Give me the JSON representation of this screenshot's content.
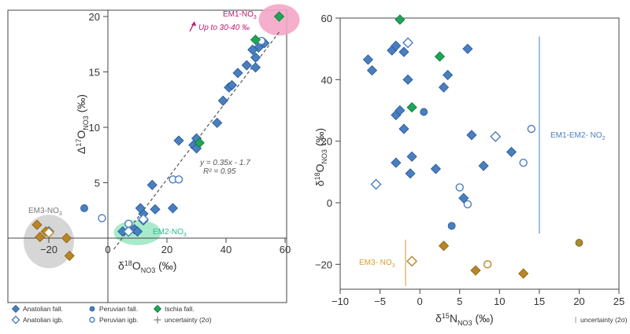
{
  "colors": {
    "anatolian": "#4a7fbf",
    "ischia": "#22a35a",
    "em3_marker": "#b8862a",
    "em3_fill": "#a88a38",
    "pink": "#f4a6c6",
    "pink_text": "#c0186e",
    "green_blob": "#9fe8c7",
    "green_text": "#2bb88a",
    "gray_blob": "#d2d2d2",
    "em_line": "#6aa0d8",
    "em3_line": "#d8b060"
  },
  "legend": {
    "items": [
      {
        "label": "Anatolian fall.",
        "marker": "filled-diamond",
        "color": "#4a7fbf"
      },
      {
        "label": "Peruvian fall.",
        "marker": "filled-circle",
        "color": "#4a7fbf"
      },
      {
        "label": "Ischia fall.",
        "marker": "filled-diamond",
        "color": "#22a35a"
      },
      {
        "label": "Anatolian igb.",
        "marker": "open-diamond",
        "color": "#4a7fbf"
      },
      {
        "label": "Peruvian igb.",
        "marker": "open-circle",
        "color": "#4a7fbf"
      },
      {
        "label": "uncertainty (2σ)",
        "marker": "cross",
        "color": "#666666"
      }
    ]
  },
  "chart_data": [
    {
      "type": "scatter",
      "xlabel": "δ18ONO3 (‰)",
      "ylabel": "Δ17ONO3 (‰)",
      "xlim": [
        -35,
        60
      ],
      "ylim": [
        -3,
        20
      ],
      "xticks": [
        -20,
        0,
        20,
        40,
        60
      ],
      "yticks": [
        5,
        10,
        15,
        20
      ],
      "regression": {
        "equation": "y = 0.35x - 1.7",
        "r2": "R² = 0.95",
        "x0": 2,
        "x1": 58
      },
      "annotations": {
        "em1": "EM1-NO3",
        "em1_sub": "3",
        "em1_label": "EM1-NO",
        "up_to": "Up to 30-40 ‰",
        "em2_label": "EM2-NO",
        "em2_sub": "3",
        "em3_label": "EM3-NO",
        "em3_sub": "3"
      },
      "regions": [
        {
          "name": "EM1",
          "cx": 58,
          "cy": 19.7,
          "color": "pink"
        },
        {
          "name": "EM2",
          "cx": 10,
          "cy": 0.5,
          "color": "green"
        },
        {
          "name": "EM3",
          "cx": -20,
          "cy": -0.3,
          "color": "gray"
        }
      ],
      "series": [
        {
          "kind": "anatolian-fall",
          "marker": "filled-diamond",
          "color": "#4a7fbf",
          "points": [
            [
              12,
              2.2
            ],
            [
              12,
              1.6
            ],
            [
              16,
              2.6
            ],
            [
              15,
              4.8
            ],
            [
              22,
              2.7
            ],
            [
              24,
              8.8
            ],
            [
              29,
              8.4
            ],
            [
              30,
              8.1
            ],
            [
              30,
              9.0
            ],
            [
              37,
              10.4
            ],
            [
              39,
              12.4
            ],
            [
              41,
              13.6
            ],
            [
              42,
              13.8
            ],
            [
              44,
              14.9
            ],
            [
              47,
              15.6
            ],
            [
              50,
              15.4
            ],
            [
              50,
              16.3
            ],
            [
              51,
              17.2
            ],
            [
              53,
              17.6
            ],
            [
              49,
              17.0
            ],
            [
              5,
              0.6
            ],
            [
              9,
              0.8
            ],
            [
              11,
              2.7
            ],
            [
              10,
              0.6
            ]
          ]
        },
        {
          "kind": "peruvian-fall",
          "marker": "filled-circle",
          "color": "#4a7fbf",
          "points": [
            [
              -8,
              2.7
            ]
          ]
        },
        {
          "kind": "anatolian-igb",
          "marker": "open-diamond",
          "color": "#4a7fbf",
          "points": [
            [
              7,
              0.6
            ],
            [
              -20,
              0.6
            ],
            [
              12,
              1.7
            ]
          ]
        },
        {
          "kind": "peruvian-igb",
          "marker": "open-circle",
          "color": "#4a7fbf",
          "points": [
            [
              22,
              5.3
            ],
            [
              24,
              5.3
            ],
            [
              -2,
              1.8
            ],
            [
              7,
              1.3
            ],
            [
              52,
              17.8
            ]
          ]
        },
        {
          "kind": "ischia-fall",
          "marker": "filled-diamond",
          "color": "#22a35a",
          "points": [
            [
              58,
              20
            ],
            [
              50,
              17.9
            ],
            [
              31,
              8.6
            ]
          ]
        },
        {
          "kind": "em3",
          "marker": "filled-diamond",
          "color": "#b8862a",
          "points": [
            [
              -24,
              1.2
            ],
            [
              -23,
              0.1
            ],
            [
              -21,
              0.6
            ],
            [
              -14,
              0.0
            ],
            [
              -13,
              -1.6
            ]
          ]
        },
        {
          "kind": "em3-open",
          "marker": "open-diamond",
          "color": "#b8862a",
          "points": [
            [
              -20,
              0.5
            ]
          ]
        }
      ]
    },
    {
      "type": "scatter",
      "xlabel": "δ15NNO3 (‰)",
      "ylabel": "δ18ONO3 (‰)",
      "xlim": [
        -10,
        25
      ],
      "ylim": [
        -28,
        60
      ],
      "xticks": [
        -10,
        -5,
        0,
        5,
        10,
        15,
        20,
        25
      ],
      "yticks": [
        -20,
        0,
        20,
        40,
        60
      ],
      "annotations": {
        "em12": "EM1-EM2- NO",
        "em12_sub": "2",
        "em3": "EM3- NO",
        "em3_sub": "3",
        "unc": "uncertainty (2σ)"
      },
      "lines": [
        {
          "name": "em12",
          "x": 15,
          "y0": -10,
          "y1": 54
        },
        {
          "name": "em3",
          "x": -1.8,
          "y0": -27,
          "y1": -12
        }
      ],
      "series": [
        {
          "kind": "anatolian-fall",
          "marker": "filled-diamond",
          "color": "#4a7fbf",
          "points": [
            [
              -6.5,
              46.5
            ],
            [
              -6,
              43
            ],
            [
              -3.5,
              49.5
            ],
            [
              -3,
              51
            ],
            [
              -3,
              28.5
            ],
            [
              -2.5,
              30
            ],
            [
              -2,
              49
            ],
            [
              -2,
              24
            ],
            [
              -1.5,
              40
            ],
            [
              -1,
              15
            ],
            [
              -1.2,
              9.5
            ],
            [
              -3,
              13
            ],
            [
              2,
              11
            ],
            [
              3,
              37.5
            ],
            [
              3.5,
              41.5
            ],
            [
              6,
              50
            ],
            [
              6.5,
              22
            ],
            [
              8,
              12
            ],
            [
              11.5,
              16.5
            ],
            [
              5.5,
              1.5
            ]
          ]
        },
        {
          "kind": "peruvian-fall",
          "marker": "filled-circle",
          "color": "#4a7fbf",
          "points": [
            [
              0.5,
              29.5
            ],
            [
              4,
              -7.5
            ]
          ]
        },
        {
          "kind": "anatolian-igb",
          "marker": "open-diamond",
          "color": "#4a7fbf",
          "points": [
            [
              -5.5,
              6
            ],
            [
              9.5,
              21.5
            ],
            [
              -1.5,
              52
            ]
          ]
        },
        {
          "kind": "peruvian-igb",
          "marker": "open-circle",
          "color": "#4a7fbf",
          "points": [
            [
              5,
              5
            ],
            [
              6,
              -0.5
            ],
            [
              13,
              13
            ],
            [
              14,
              24
            ]
          ]
        },
        {
          "kind": "ischia-fall",
          "marker": "filled-diamond",
          "color": "#22a35a",
          "points": [
            [
              -2.5,
              59.5
            ],
            [
              2.5,
              47.5
            ],
            [
              -1,
              31
            ]
          ]
        },
        {
          "kind": "em3",
          "marker": "filled-diamond",
          "color": "#b8862a",
          "points": [
            [
              3,
              -14
            ],
            [
              7,
              -22
            ],
            [
              13,
              -23
            ]
          ]
        },
        {
          "kind": "em3-circle",
          "marker": "filled-circle",
          "color": "#a88a38",
          "points": [
            [
              20,
              -13
            ]
          ]
        },
        {
          "kind": "em3-open",
          "marker": "open-diamond",
          "color": "#b8862a",
          "points": [
            [
              -1,
              -19
            ]
          ]
        },
        {
          "kind": "em3-open-circle",
          "marker": "open-circle",
          "color": "#b8862a",
          "points": [
            [
              8.5,
              -20
            ]
          ]
        }
      ]
    }
  ]
}
